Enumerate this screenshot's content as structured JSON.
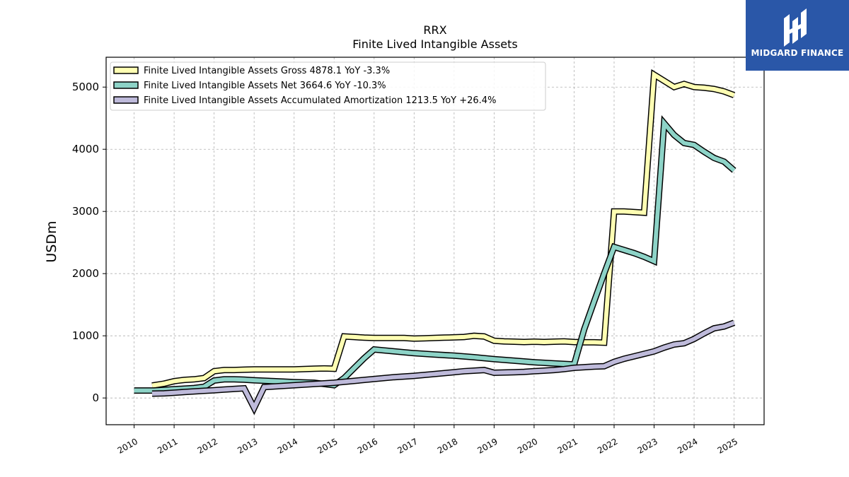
{
  "brand": {
    "name": "MIDGARD FINANCE",
    "color": "#2a57a8"
  },
  "chart_data": {
    "type": "line",
    "title": "RRX",
    "subtitle": "Finite Lived Intangible Assets",
    "ylabel": "USDm",
    "xlabel": "",
    "ylim": [
      -430,
      5480
    ],
    "xlim": [
      2009.3,
      2025.75
    ],
    "yticks": [
      0,
      1000,
      2000,
      3000,
      4000,
      5000
    ],
    "xticks": [
      "2010",
      "2011",
      "2012",
      "2013",
      "2014",
      "2015",
      "2016",
      "2017",
      "2018",
      "2019",
      "2020",
      "2021",
      "2022",
      "2023",
      "2024",
      "2025"
    ],
    "grid": true,
    "legend_position": "top-left",
    "series": [
      {
        "name": "Finite Lived Intangible Assets Gross  4878.1 YoY -3.3%",
        "color": "#ffffb3",
        "x": [
          2010.45,
          2010.75,
          2011.0,
          2011.25,
          2011.5,
          2011.75,
          2012.0,
          2012.25,
          2012.5,
          2012.75,
          2013.0,
          2013.25,
          2013.5,
          2013.75,
          2014.0,
          2014.25,
          2014.5,
          2014.75,
          2015.0,
          2015.25,
          2015.5,
          2015.75,
          2016.0,
          2016.25,
          2016.5,
          2016.75,
          2017.0,
          2017.25,
          2017.5,
          2017.75,
          2018.0,
          2018.25,
          2018.5,
          2018.75,
          2019.0,
          2019.25,
          2019.5,
          2019.75,
          2020.0,
          2020.25,
          2020.5,
          2020.75,
          2021.0,
          2021.25,
          2021.5,
          2021.75,
          2022.0,
          2022.25,
          2022.5,
          2022.75,
          2023.0,
          2023.25,
          2023.5,
          2023.75,
          2024.0,
          2024.25,
          2024.5,
          2024.75,
          2025.0
        ],
        "values": [
          200,
          230,
          270,
          290,
          300,
          320,
          430,
          450,
          450,
          455,
          460,
          460,
          460,
          460,
          460,
          465,
          470,
          475,
          470,
          990,
          980,
          970,
          965,
          965,
          965,
          965,
          955,
          960,
          965,
          970,
          975,
          980,
          1000,
          990,
          920,
          910,
          905,
          900,
          905,
          900,
          905,
          910,
          900,
          895,
          895,
          890,
          3000,
          3000,
          2990,
          2980,
          5200,
          5100,
          5000,
          5050,
          5000,
          4990,
          4970,
          4930,
          4870
        ]
      },
      {
        "name": "Finite Lived Intangible Assets Net  3664.6 YoY -10.3%",
        "color": "#8dd3c7",
        "x": [
          2010.0,
          2010.25,
          2010.5,
          2010.75,
          2011.0,
          2011.25,
          2011.5,
          2011.75,
          2012.0,
          2012.25,
          2012.5,
          2012.75,
          2013.0,
          2013.5,
          2014.0,
          2014.5,
          2015.0,
          2015.25,
          2015.5,
          2015.75,
          2016.0,
          2016.5,
          2017.0,
          2017.5,
          2018.0,
          2018.5,
          2019.0,
          2019.5,
          2020.0,
          2020.5,
          2021.0,
          2021.25,
          2021.5,
          2021.75,
          2022.0,
          2022.25,
          2022.5,
          2022.75,
          2023.0,
          2023.25,
          2023.5,
          2023.75,
          2024.0,
          2024.25,
          2024.5,
          2024.75,
          2025.0
        ],
        "values": [
          120,
          120,
          120,
          130,
          140,
          150,
          160,
          180,
          280,
          300,
          300,
          295,
          285,
          270,
          255,
          245,
          205,
          320,
          480,
          640,
          780,
          750,
          720,
          700,
          680,
          655,
          625,
          600,
          575,
          555,
          540,
          1100,
          1550,
          2000,
          2430,
          2380,
          2330,
          2270,
          2200,
          4420,
          4230,
          4100,
          4070,
          3960,
          3860,
          3800,
          3660
        ]
      },
      {
        "name": "Finite Lived Intangible Assets Accumulated Amortization  1213.5 YoY +26.4%",
        "color": "#bebada",
        "x": [
          2010.45,
          2010.75,
          2011.0,
          2011.25,
          2011.5,
          2011.75,
          2012.0,
          2012.25,
          2012.5,
          2012.75,
          2013.0,
          2013.25,
          2013.5,
          2013.75,
          2014.0,
          2014.25,
          2014.5,
          2014.75,
          2015.0,
          2015.5,
          2016.0,
          2016.5,
          2017.0,
          2017.5,
          2018.0,
          2018.25,
          2018.5,
          2018.75,
          2019.0,
          2019.25,
          2019.5,
          2019.75,
          2020.0,
          2020.25,
          2020.5,
          2020.75,
          2021.0,
          2021.25,
          2021.5,
          2021.75,
          2022.0,
          2022.25,
          2022.5,
          2022.75,
          2023.0,
          2023.25,
          2023.5,
          2023.75,
          2024.0,
          2024.25,
          2024.5,
          2024.75,
          2025.0
        ],
        "values": [
          70,
          75,
          85,
          95,
          105,
          115,
          125,
          135,
          145,
          155,
          -160,
          175,
          185,
          195,
          205,
          215,
          225,
          235,
          245,
          275,
          305,
          335,
          355,
          385,
          415,
          430,
          440,
          450,
          405,
          410,
          415,
          420,
          430,
          440,
          450,
          465,
          485,
          495,
          505,
          510,
          580,
          630,
          670,
          710,
          750,
          810,
          860,
          880,
          950,
          1040,
          1120,
          1150,
          1210
        ]
      }
    ]
  }
}
